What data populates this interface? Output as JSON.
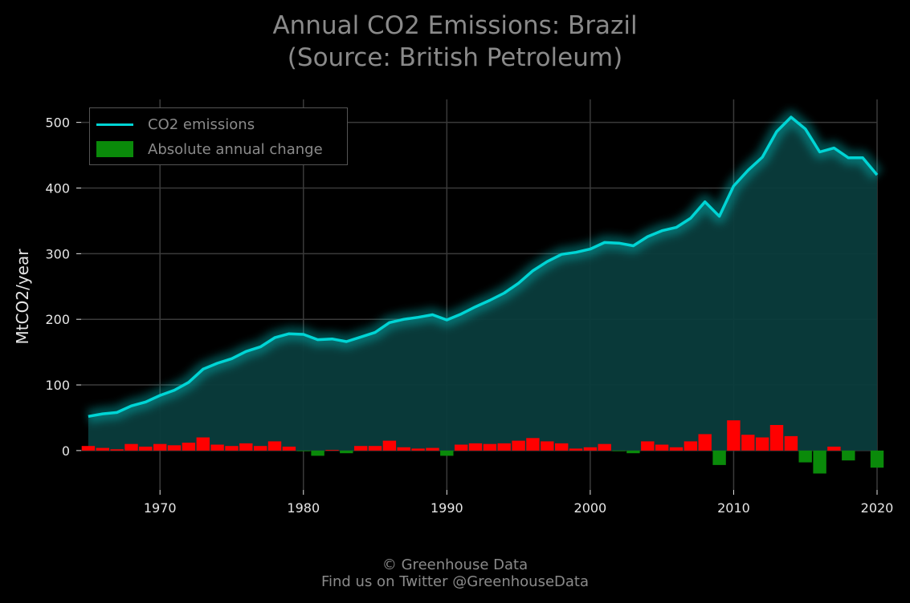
{
  "title_lines": [
    "Annual CO2 Emissions: Brazil",
    "(Source: British Petroleum)"
  ],
  "footer": {
    "line1": "© Greenhouse Data",
    "line2": "Find us on Twitter @GreenhouseData"
  },
  "colors": {
    "line": "#00d5d5",
    "area": "#0a3c3c",
    "positive": "#ff0000",
    "negative": "#0a8a0a",
    "grid": "#3a3a3a",
    "background": "#000000"
  },
  "chart_data": {
    "type": "line",
    "ylabel": "MtCO2/year",
    "xlabel": "",
    "xlim": [
      1964.5,
      2020
    ],
    "ylim": [
      -60,
      535
    ],
    "xticks": [
      1970,
      1980,
      1990,
      2000,
      2010,
      2020
    ],
    "yticks": [
      0,
      100,
      200,
      300,
      400,
      500
    ],
    "grid": true,
    "legend_position": "top-left",
    "legend": [
      "CO2 emissions",
      "Absolute annual change"
    ],
    "x": [
      1965,
      1966,
      1967,
      1968,
      1969,
      1970,
      1971,
      1972,
      1973,
      1974,
      1975,
      1976,
      1977,
      1978,
      1979,
      1980,
      1981,
      1982,
      1983,
      1984,
      1985,
      1986,
      1987,
      1988,
      1989,
      1990,
      1991,
      1992,
      1993,
      1994,
      1995,
      1996,
      1997,
      1998,
      1999,
      2000,
      2001,
      2002,
      2003,
      2004,
      2005,
      2006,
      2007,
      2008,
      2009,
      2010,
      2011,
      2012,
      2013,
      2014,
      2015,
      2016,
      2017,
      2018,
      2019,
      2020
    ],
    "series": [
      {
        "name": "CO2 emissions",
        "type": "line",
        "values": [
          52,
          56,
          58,
          68,
          74,
          84,
          92,
          104,
          124,
          133,
          140,
          151,
          158,
          172,
          178,
          177,
          169,
          170,
          166,
          173,
          180,
          195,
          200,
          203,
          207,
          199,
          208,
          219,
          229,
          240,
          255,
          274,
          288,
          299,
          302,
          307,
          317,
          316,
          312,
          326,
          335,
          340,
          354,
          379,
          357,
          403,
          427,
          447,
          486,
          508,
          490,
          455,
          461,
          446,
          446,
          420
        ]
      },
      {
        "name": "Absolute annual change",
        "type": "bar",
        "values": [
          7,
          4,
          2,
          10,
          6,
          10,
          8,
          12,
          20,
          9,
          7,
          11,
          7,
          14,
          6,
          -1,
          -8,
          1,
          -4,
          7,
          7,
          15,
          5,
          3,
          4,
          -8,
          9,
          11,
          10,
          11,
          15,
          19,
          14,
          11,
          3,
          5,
          10,
          -1,
          -4,
          14,
          9,
          5,
          14,
          25,
          -22,
          46,
          24,
          20,
          39,
          22,
          -18,
          -35,
          6,
          -15,
          0,
          -26
        ]
      }
    ]
  }
}
